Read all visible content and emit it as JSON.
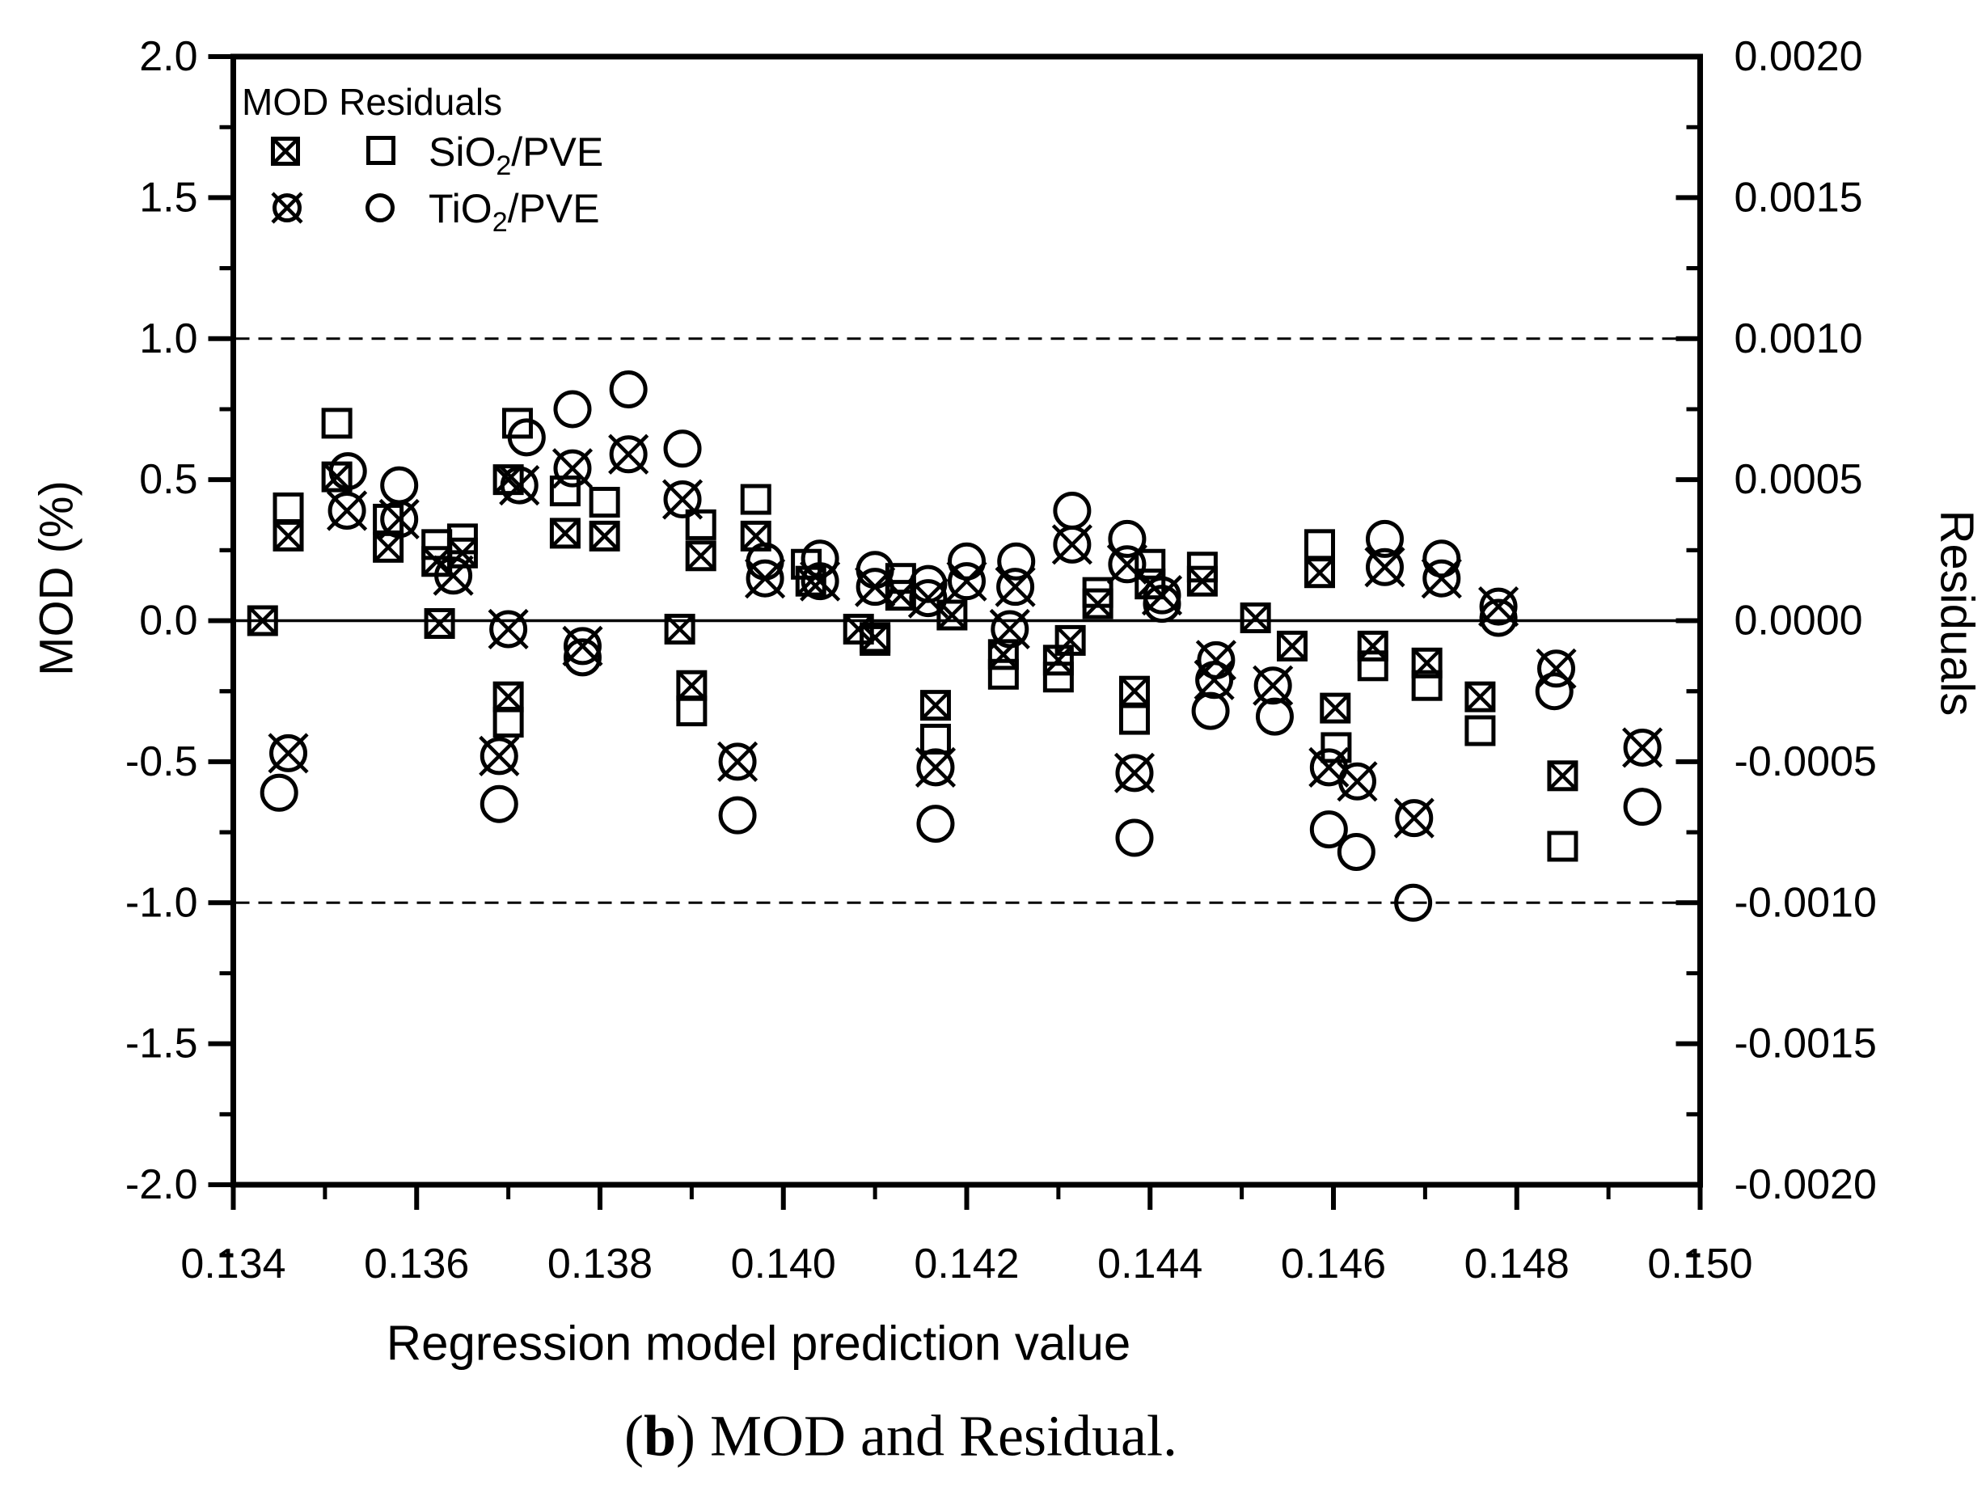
{
  "figure": {
    "caption": {
      "prefix": "(",
      "bold": "b",
      "rest": ") MOD and Residual."
    }
  },
  "chart_data": {
    "type": "scatter",
    "xlabel": "Regression model prediction value",
    "ylabel_left": "MOD (%)",
    "ylabel_right": "Residuals",
    "xlim": [
      0.134,
      0.15
    ],
    "ylim_left": [
      -2.0,
      2.0
    ],
    "ylim_right": [
      -0.002,
      0.002
    ],
    "grid": "off",
    "x_ticks": {
      "values": [
        0.134,
        0.136,
        0.138,
        0.14,
        0.142,
        0.144,
        0.146,
        0.148,
        0.15
      ],
      "labels": [
        "0.134",
        "0.136",
        "0.138",
        "0.140",
        "0.142",
        "0.144",
        "0.146",
        "0.148",
        "0.150"
      ],
      "minor_step": 0.001
    },
    "y_left_ticks": {
      "values": [
        2.0,
        1.5,
        1.0,
        0.5,
        0.0,
        -0.5,
        -1.0,
        -1.5,
        -2.0
      ],
      "labels": [
        "2.0",
        "1.5",
        "1.0",
        "0.5",
        "0.0",
        "-0.5",
        "-1.0",
        "-1.5",
        "-2.0"
      ],
      "minor_step": 0.25
    },
    "y_right_ticks": {
      "values": [
        0.002,
        0.0015,
        0.001,
        0.0005,
        0.0,
        -0.0005,
        -0.001,
        -0.0015,
        -0.002
      ],
      "labels": [
        "0.0020",
        "0.0015",
        "0.0010",
        "0.0005",
        "0.0000",
        "-0.0005",
        "-0.0010",
        "-0.0015",
        "-0.0020"
      ]
    },
    "reference_lines": [
      {
        "y": 1.0,
        "style": "dashed"
      },
      {
        "y": 0.0,
        "style": "solid"
      },
      {
        "y": -1.0,
        "style": "dashed"
      }
    ],
    "legend": {
      "title": "MOD Residuals",
      "rows": [
        {
          "mod_marker": "crossed-square",
          "residual_marker": "open-square",
          "label_main": "SiO",
          "label_sub": "2",
          "label_suffix": "/PVE"
        },
        {
          "mod_marker": "crossed-circle",
          "residual_marker": "open-circle",
          "label_main": "TiO",
          "label_sub": "2",
          "label_suffix": "/PVE"
        }
      ]
    },
    "colors": {
      "foreground": "#000000",
      "background": "#ffffff"
    },
    "series": [
      {
        "name": "MOD SiO2/PVE",
        "marker": "crossed-square",
        "axis": "left",
        "points": [
          [
            0.13432,
            0.0
          ],
          [
            0.1346,
            0.3
          ],
          [
            0.13513,
            0.51
          ],
          [
            0.13569,
            0.26
          ],
          [
            0.13622,
            0.21
          ],
          [
            0.1365,
            0.24
          ],
          [
            0.13625,
            -0.01
          ],
          [
            0.137,
            0.5
          ],
          [
            0.137,
            -0.27
          ],
          [
            0.13762,
            0.31
          ],
          [
            0.13805,
            0.3
          ],
          [
            0.13887,
            -0.03
          ],
          [
            0.139,
            -0.23
          ],
          [
            0.1391,
            0.23
          ],
          [
            0.1397,
            0.3
          ],
          [
            0.1403,
            0.14
          ],
          [
            0.14082,
            -0.03
          ],
          [
            0.141,
            -0.06
          ],
          [
            0.14128,
            0.09
          ],
          [
            0.14166,
            -0.3
          ],
          [
            0.14184,
            0.02
          ],
          [
            0.1424,
            -0.12
          ],
          [
            0.143,
            -0.14
          ],
          [
            0.14313,
            -0.07
          ],
          [
            0.14343,
            0.06
          ],
          [
            0.14383,
            -0.25
          ],
          [
            0.144,
            0.13
          ],
          [
            0.14457,
            0.14
          ],
          [
            0.14515,
            0.01
          ],
          [
            0.14555,
            -0.09
          ],
          [
            0.14585,
            0.17
          ],
          [
            0.14602,
            -0.31
          ],
          [
            0.14643,
            -0.09
          ],
          [
            0.14702,
            -0.15
          ],
          [
            0.1476,
            -0.27
          ],
          [
            0.1485,
            -0.55
          ]
        ]
      },
      {
        "name": "Residuals SiO2/PVE",
        "marker": "open-square",
        "axis": "right",
        "points": [
          [
            0.1346,
            0.0004
          ],
          [
            0.13513,
            0.0007
          ],
          [
            0.13569,
            0.00036
          ],
          [
            0.13622,
            0.00027
          ],
          [
            0.1365,
            0.00029
          ],
          [
            0.137,
            -0.00036
          ],
          [
            0.1371,
            0.0007
          ],
          [
            0.13762,
            0.00046
          ],
          [
            0.13805,
            0.00042
          ],
          [
            0.139,
            -0.00032
          ],
          [
            0.1391,
            0.00034
          ],
          [
            0.1397,
            0.00043
          ],
          [
            0.14025,
            0.0002
          ],
          [
            0.141,
            -7e-05
          ],
          [
            0.14128,
            0.00015
          ],
          [
            0.14166,
            -0.00042
          ],
          [
            0.1424,
            -0.00019
          ],
          [
            0.143,
            -0.0002
          ],
          [
            0.14343,
            0.0001
          ],
          [
            0.14383,
            -0.00035
          ],
          [
            0.144,
            0.0002
          ],
          [
            0.14457,
            0.00019
          ],
          [
            0.14585,
            0.00027
          ],
          [
            0.14603,
            -0.00045
          ],
          [
            0.14643,
            -0.00016
          ],
          [
            0.14702,
            -0.00023
          ],
          [
            0.1476,
            -0.00039
          ],
          [
            0.1485,
            -0.0008
          ]
        ]
      },
      {
        "name": "MOD TiO2/PVE",
        "marker": "crossed-circle",
        "axis": "left",
        "points": [
          [
            0.1346,
            -0.47
          ],
          [
            0.13524,
            0.39
          ],
          [
            0.13581,
            0.36
          ],
          [
            0.1364,
            0.16
          ],
          [
            0.1369,
            -0.48
          ],
          [
            0.137,
            -0.03
          ],
          [
            0.13712,
            0.48
          ],
          [
            0.1377,
            0.54
          ],
          [
            0.13781,
            -0.09
          ],
          [
            0.13831,
            0.59
          ],
          [
            0.1389,
            0.43
          ],
          [
            0.1395,
            -0.5
          ],
          [
            0.1398,
            0.15
          ],
          [
            0.1404,
            0.14
          ],
          [
            0.141,
            0.12
          ],
          [
            0.14158,
            0.08
          ],
          [
            0.14166,
            -0.52
          ],
          [
            0.142,
            0.14
          ],
          [
            0.14247,
            -0.03
          ],
          [
            0.14253,
            0.12
          ],
          [
            0.14315,
            0.27
          ],
          [
            0.14375,
            0.2
          ],
          [
            0.14383,
            -0.54
          ],
          [
            0.14413,
            0.09
          ],
          [
            0.1447,
            -0.21
          ],
          [
            0.14472,
            -0.14
          ],
          [
            0.14534,
            -0.23
          ],
          [
            0.14595,
            -0.52
          ],
          [
            0.14626,
            -0.57
          ],
          [
            0.14656,
            0.19
          ],
          [
            0.14688,
            -0.7
          ],
          [
            0.14718,
            0.15
          ],
          [
            0.1478,
            0.05
          ],
          [
            0.14843,
            -0.17
          ],
          [
            0.14937,
            -0.45
          ]
        ]
      },
      {
        "name": "Residuals TiO2/PVE",
        "marker": "open-circle",
        "axis": "right",
        "points": [
          [
            0.1345,
            -0.00061
          ],
          [
            0.13525,
            0.00053
          ],
          [
            0.13581,
            0.00048
          ],
          [
            0.1369,
            -0.00065
          ],
          [
            0.1372,
            0.00065
          ],
          [
            0.1377,
            0.00075
          ],
          [
            0.13781,
            -0.00013
          ],
          [
            0.13831,
            0.00082
          ],
          [
            0.1389,
            0.00061
          ],
          [
            0.1395,
            -0.00069
          ],
          [
            0.1398,
            0.00021
          ],
          [
            0.1404,
            0.00022
          ],
          [
            0.141,
            0.00018
          ],
          [
            0.14158,
            0.00013
          ],
          [
            0.14166,
            -0.00072
          ],
          [
            0.142,
            0.00021
          ],
          [
            0.14254,
            0.00021
          ],
          [
            0.14315,
            0.00039
          ],
          [
            0.14375,
            0.00029
          ],
          [
            0.14383,
            -0.00077
          ],
          [
            0.14413,
            6e-05
          ],
          [
            0.14466,
            -0.00032
          ],
          [
            0.14536,
            -0.00034
          ],
          [
            0.14595,
            -0.00074
          ],
          [
            0.14625,
            -0.00082
          ],
          [
            0.14656,
            0.00029
          ],
          [
            0.14687,
            -0.001
          ],
          [
            0.14718,
            0.00022
          ],
          [
            0.1478,
            1e-05
          ],
          [
            0.14841,
            -0.00025
          ],
          [
            0.14937,
            -0.00066
          ]
        ]
      }
    ]
  }
}
